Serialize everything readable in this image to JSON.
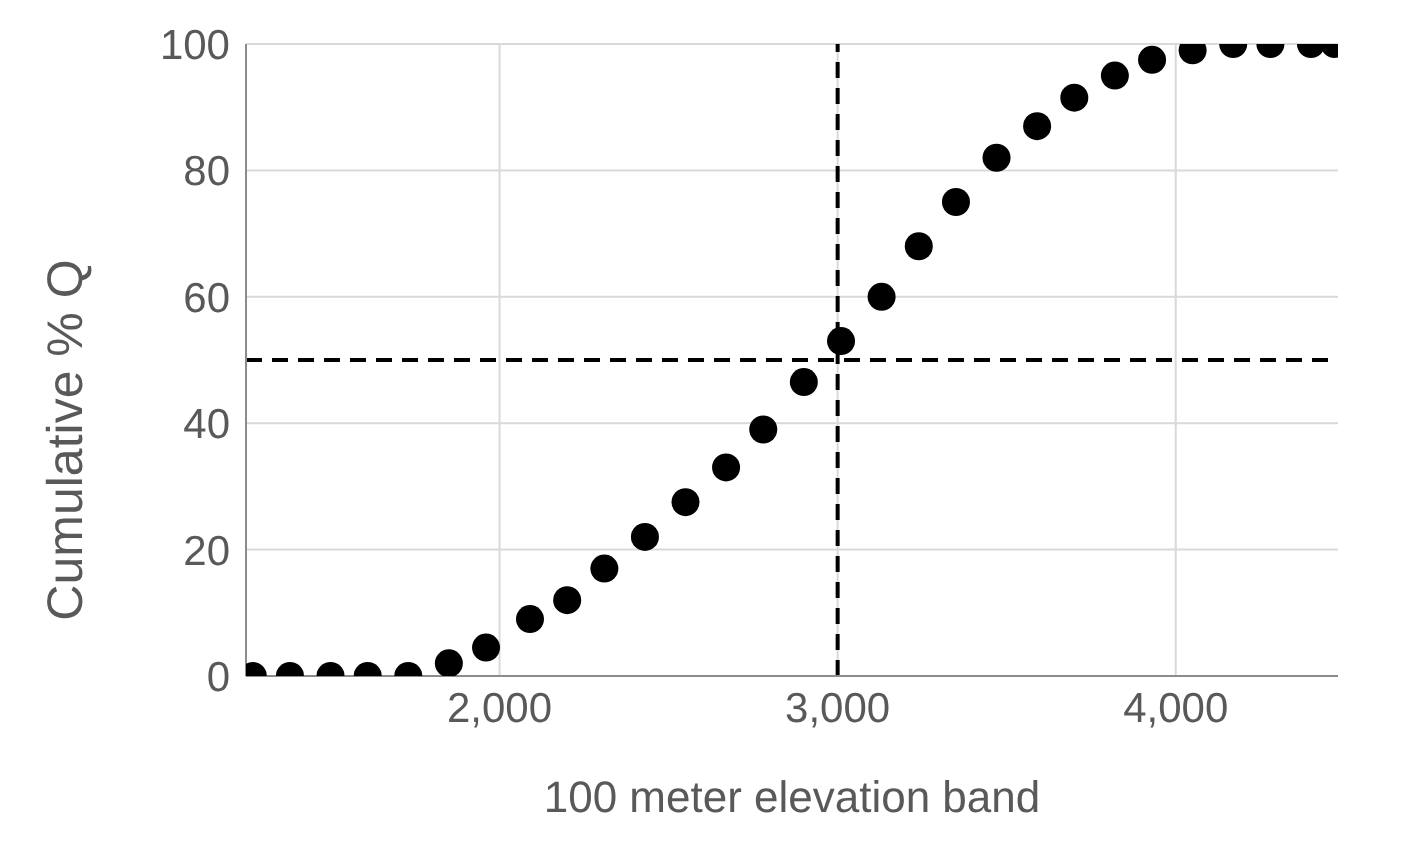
{
  "chart_data": {
    "type": "scatter",
    "xlabel": "100 meter elevation band",
    "ylabel": "Cumulative % Q",
    "x": [
      1270,
      1380,
      1500,
      1610,
      1730,
      1850,
      1960,
      2090,
      2200,
      2310,
      2430,
      2550,
      2670,
      2780,
      2900,
      3010,
      3130,
      3240,
      3350,
      3470,
      3590,
      3700,
      3820,
      3930,
      4050,
      4170,
      4280,
      4400,
      4470
    ],
    "series": [
      {
        "color": "#000000",
        "values": [
          0,
          0,
          0,
          0,
          0,
          2,
          4.5,
          9,
          12,
          17,
          22,
          27.5,
          33,
          39,
          46.5,
          53,
          60,
          68,
          75,
          82,
          87,
          91.5,
          95,
          97.5,
          99,
          100,
          100,
          100,
          100
        ]
      }
    ],
    "xlim": [
      1250,
      4480
    ],
    "ylim": [
      0,
      100
    ],
    "xticks": [
      {
        "value": 2000,
        "label": "2,000"
      },
      {
        "value": 3000,
        "label": "3,000"
      },
      {
        "value": 4000,
        "label": "4,000"
      }
    ],
    "yticks": [
      0,
      20,
      40,
      60,
      80,
      100
    ],
    "grid": true,
    "marker": "circle",
    "ref_lines": [
      {
        "axis": "y",
        "value": 50,
        "line_style": "dashed",
        "color": "#000000"
      },
      {
        "axis": "x",
        "value": 3000,
        "line_style": "dashed",
        "color": "#000000"
      }
    ]
  }
}
